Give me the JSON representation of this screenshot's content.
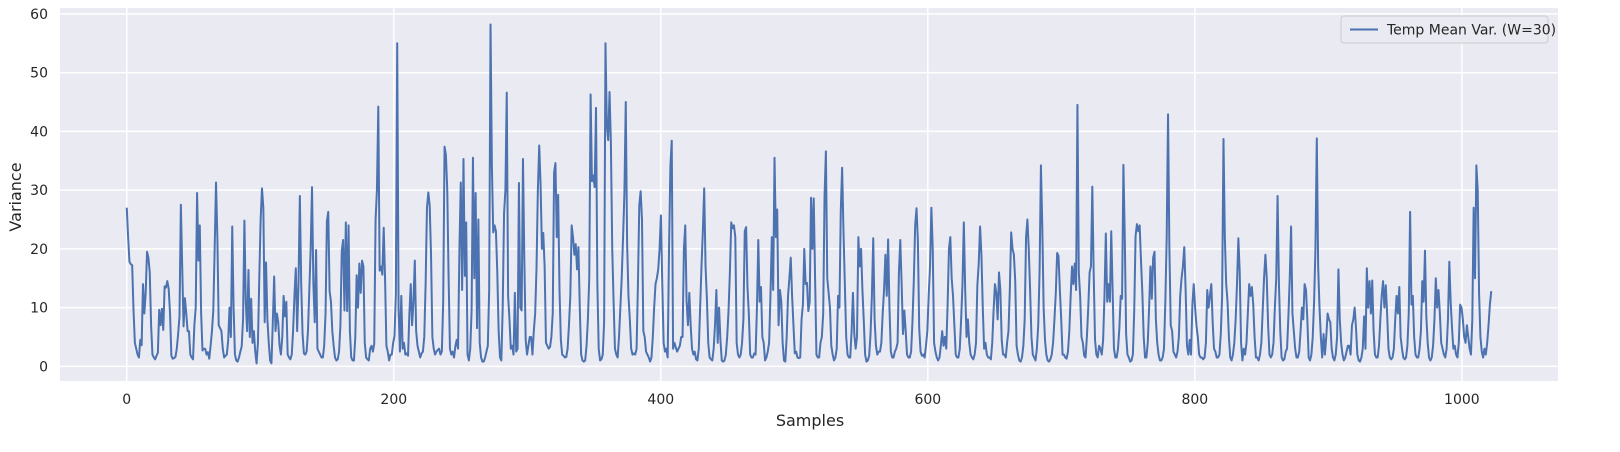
{
  "chart_data": {
    "type": "line",
    "xlabel": "Samples",
    "ylabel": "Variance",
    "xlim": [
      -50,
      1072
    ],
    "ylim": [
      -2.5,
      61
    ],
    "x_ticks": [
      0,
      200,
      400,
      600,
      800,
      1000
    ],
    "y_ticks": [
      0,
      10,
      20,
      30,
      40,
      50,
      60
    ],
    "grid": true,
    "legend_position": "top-right",
    "background": "#eaeaf2",
    "series": [
      {
        "name": "Temp Mean Var. (W=30)",
        "color": "#4c72b0",
        "x_start": 0,
        "x_step": 1,
        "values": [
          27.0,
          22.0,
          17.8,
          17.4,
          17.2,
          9.5,
          4.0,
          3.0,
          2.0,
          1.5,
          4.5,
          3.6,
          14.0,
          9.0,
          12.5,
          19.5,
          18.5,
          16.0,
          7.0,
          2.0,
          1.5,
          1.2,
          1.8,
          2.3,
          9.6,
          7.0,
          9.8,
          6.2,
          13.6,
          13.4,
          14.5,
          13.2,
          9.0,
          1.8,
          1.3,
          1.4,
          1.6,
          3.0,
          5.5,
          8.5,
          27.5,
          17.0,
          6.8,
          11.6,
          9.0,
          6.0,
          6.0,
          2.0,
          1.5,
          1.2,
          7.0,
          10.0,
          29.5,
          18.0,
          24.0,
          9.0,
          2.7,
          3.0,
          3.0,
          2.0,
          2.4,
          1.3,
          3.5,
          6.0,
          9.5,
          20.0,
          31.3,
          22.0,
          7.0,
          6.5,
          6.0,
          3.0,
          1.5,
          1.8,
          2.0,
          4.4,
          10.0,
          5.0,
          23.8,
          10.0,
          2.0,
          1.0,
          0.8,
          1.5,
          2.5,
          3.4,
          8.0,
          24.8,
          11.0,
          6.0,
          16.4,
          5.0,
          11.5,
          4.0,
          6.0,
          2.5,
          0.5,
          4.0,
          15.0,
          25.0,
          30.3,
          27.0,
          7.5,
          17.7,
          8.0,
          4.0,
          1.0,
          0.5,
          7.5,
          15.3,
          6.0,
          9.0,
          7.5,
          3.5,
          2.0,
          5.0,
          12.0,
          8.5,
          11.0,
          2.0,
          1.5,
          1.2,
          2.0,
          6.0,
          12.0,
          16.7,
          6.0,
          14.0,
          29.0,
          14.0,
          5.5,
          2.2,
          2.0,
          2.5,
          6.0,
          13.0,
          20.0,
          30.5,
          14.0,
          7.5,
          19.8,
          3.0,
          2.5,
          2.0,
          1.5,
          1.5,
          3.5,
          9.0,
          24.7,
          26.3,
          12.8,
          11.0,
          6.0,
          3.5,
          1.5,
          1.0,
          1.2,
          2.5,
          7.0,
          19.7,
          21.5,
          9.5,
          24.5,
          9.4,
          24.0,
          6.0,
          1.5,
          1.0,
          1.0,
          5.0,
          15.5,
          10.0,
          17.5,
          12.5,
          18.0,
          17.0,
          4.0,
          1.5,
          1.2,
          1.0,
          3.0,
          3.5,
          2.5,
          3.8,
          25.0,
          30.0,
          44.2,
          16.3,
          17.0,
          15.6,
          23.6,
          15.0,
          3.5,
          2.5,
          1.0,
          2.0,
          2.0,
          4.0,
          5.2,
          12.5,
          55.0,
          10.0,
          2.5,
          12.0,
          3.0,
          4.0,
          2.0,
          2.2,
          1.8,
          9.0,
          14.0,
          7.0,
          11.0,
          18.0,
          6.0,
          3.5,
          2.5,
          1.5,
          2.2,
          2.5,
          5.0,
          14.0,
          27.0,
          29.6,
          27.4,
          19.0,
          5.0,
          3.0,
          2.0,
          2.5,
          2.8,
          3.0,
          2.0,
          2.5,
          11.0,
          37.4,
          36.0,
          30.0,
          15.0,
          3.0,
          2.0,
          2.5,
          1.5,
          3.4,
          4.5,
          3.0,
          20.0,
          31.3,
          13.0,
          35.3,
          15.4,
          24.5,
          2.0,
          1.0,
          3.0,
          9.5,
          35.5,
          15.0,
          29.5,
          6.5,
          25.0,
          4.0,
          1.5,
          0.8,
          0.8,
          1.5,
          2.5,
          3.5,
          13.0,
          58.2,
          34.0,
          22.8,
          24.0,
          23.0,
          16.0,
          6.0,
          1.5,
          1.0,
          10.0,
          26.0,
          30.0,
          46.6,
          12.0,
          8.0,
          3.0,
          3.5,
          2.0,
          12.5,
          2.5,
          3.0,
          31.2,
          10.0,
          9.5,
          35.3,
          18.0,
          4.5,
          2.0,
          3.5,
          5.0,
          5.0,
          2.0,
          6.0,
          9.0,
          16.7,
          30.0,
          37.6,
          31.0,
          20.0,
          22.7,
          17.0,
          4.0,
          3.5,
          3.0,
          3.3,
          5.0,
          9.0,
          33.0,
          34.6,
          22.0,
          29.2,
          13.0,
          4.5,
          2.0,
          1.8,
          1.5,
          1.6,
          3.0,
          7.0,
          12.0,
          24.0,
          22.0,
          19.0,
          20.8,
          16.5,
          20.3,
          10.0,
          2.0,
          1.0,
          0.8,
          1.0,
          3.5,
          8.0,
          15.0,
          46.3,
          31.5,
          32.5,
          30.5,
          44.0,
          14.0,
          3.0,
          1.0,
          1.2,
          2.0,
          7.5,
          55.0,
          41.0,
          38.5,
          46.7,
          38.0,
          20.0,
          11.0,
          3.0,
          2.0,
          1.5,
          5.0,
          10.0,
          15.0,
          22.0,
          29.5,
          45.0,
          21.0,
          12.0,
          8.0,
          3.0,
          2.0,
          2.2,
          2.0,
          3.0,
          14.0,
          27.4,
          29.8,
          25.0,
          6.0,
          5.0,
          2.5,
          2.0,
          1.5,
          0.8,
          1.5,
          5.0,
          10.0,
          14.0,
          15.0,
          16.5,
          20.0,
          25.7,
          14.0,
          4.0,
          2.5,
          3.0,
          1.5,
          20.0,
          34.0,
          38.4,
          3.0,
          4.0,
          3.2,
          2.5,
          3.0,
          3.5,
          5.0,
          5.0,
          20.0,
          24.0,
          11.0,
          7.0,
          12.5,
          7.0,
          3.0,
          2.0,
          2.5,
          1.2,
          1.0,
          3.0,
          10.0,
          17.0,
          23.0,
          30.3,
          17.0,
          11.5,
          4.0,
          1.5,
          1.2,
          1.0,
          3.0,
          7.0,
          13.0,
          4.0,
          10.0,
          4.5,
          1.0,
          0.8,
          1.0,
          2.0,
          5.0,
          9.5,
          16.0,
          24.5,
          23.5,
          24.0,
          22.0,
          4.0,
          2.0,
          1.5,
          2.0,
          4.0,
          8.0,
          23.0,
          23.7,
          13.5,
          9.0,
          2.0,
          1.5,
          1.5,
          2.2,
          2.0,
          10.0,
          21.5,
          11.0,
          13.5,
          5.0,
          4.0,
          1.0,
          1.5,
          2.5,
          4.0,
          12.0,
          22.0,
          13.0,
          35.5,
          22.0,
          26.7,
          7.0,
          13.0,
          11.0,
          4.0,
          1.0,
          0.8,
          5.0,
          12.0,
          15.0,
          18.5,
          12.0,
          7.0,
          2.2,
          2.5,
          1.5,
          1.4,
          1.5,
          8.0,
          10.5,
          20.0,
          14.0,
          14.2,
          9.4,
          11.0,
          28.7,
          20.0,
          28.6,
          15.0,
          2.0,
          1.5,
          1.5,
          4.0,
          5.0,
          9.0,
          29.0,
          36.6,
          15.0,
          12.5,
          10.0,
          3.5,
          2.0,
          1.0,
          1.5,
          3.0,
          12.0,
          10.0,
          26.5,
          33.8,
          23.0,
          14.0,
          5.0,
          2.0,
          1.5,
          1.5,
          6.0,
          12.5,
          5.5,
          3.0,
          5.0,
          22.0,
          17.0,
          20.0,
          13.0,
          7.8,
          2.0,
          0.8,
          1.0,
          1.8,
          5.5,
          12.0,
          21.8,
          8.0,
          3.5,
          2.0,
          2.5,
          2.5,
          4.0,
          9.0,
          13.0,
          19.0,
          12.0,
          21.6,
          10.0,
          2.5,
          1.5,
          1.5,
          2.5,
          3.0,
          4.0,
          16.0,
          21.5,
          14.0,
          5.5,
          9.5,
          6.0,
          2.0,
          1.5,
          1.5,
          2.5,
          7.5,
          14.5,
          24.0,
          26.9,
          21.5,
          6.5,
          2.5,
          1.8,
          2.0,
          1.5,
          3.5,
          6.0,
          12.0,
          17.0,
          27.0,
          20.0,
          4.0,
          2.5,
          1.5,
          1.0,
          1.5,
          3.5,
          6.0,
          3.5,
          5.0,
          3.0,
          10.5,
          20.0,
          22.0,
          15.0,
          12.0,
          7.0,
          2.0,
          1.5,
          1.5,
          3.0,
          8.0,
          14.0,
          24.5,
          13.0,
          5.0,
          8.0,
          4.0,
          2.0,
          1.5,
          1.2,
          2.0,
          4.0,
          13.8,
          17.5,
          23.8,
          19.0,
          10.0,
          3.0,
          4.0,
          2.0,
          1.5,
          1.5,
          1.2,
          4.0,
          9.5,
          14.0,
          12.5,
          8.0,
          16.0,
          13.0,
          4.5,
          2.0,
          2.0,
          1.5,
          4.0,
          6.0,
          13.0,
          22.8,
          20.0,
          19.0,
          14.5,
          3.5,
          2.0,
          1.0,
          0.8,
          1.5,
          3.5,
          8.0,
          22.0,
          25.0,
          20.0,
          13.0,
          5.0,
          2.0,
          1.5,
          1.0,
          3.0,
          7.0,
          16.0,
          34.2,
          24.0,
          10.0,
          4.5,
          2.0,
          1.0,
          0.8,
          1.2,
          2.0,
          4.0,
          8.0,
          12.5,
          19.3,
          18.8,
          13.0,
          8.0,
          2.0,
          2.0,
          1.5,
          1.3,
          2.5,
          6.0,
          12.0,
          17.0,
          14.0,
          17.5,
          13.0,
          44.5,
          16.0,
          12.0,
          5.0,
          4.0,
          1.8,
          1.5,
          5.0,
          10.0,
          16.0,
          17.0,
          30.6,
          16.0,
          4.5,
          2.0,
          1.5,
          3.5,
          3.0,
          2.0,
          4.5,
          12.0,
          22.6,
          11.0,
          14.0,
          11.0,
          23.0,
          13.0,
          3.0,
          1.5,
          1.5,
          3.0,
          6.5,
          12.0,
          11.5,
          34.3,
          22.0,
          5.5,
          2.0,
          1.5,
          0.8,
          1.0,
          2.0,
          9.5,
          22.2,
          24.2,
          23.0,
          24.0,
          18.0,
          12.5,
          5.0,
          1.5,
          1.5,
          4.0,
          10.0,
          17.0,
          11.5,
          18.5,
          19.5,
          8.0,
          4.0,
          2.0,
          1.0,
          1.0,
          1.5,
          3.0,
          11.0,
          22.0,
          42.9,
          20.0,
          7.0,
          6.0,
          2.5,
          2.0,
          1.5,
          2.5,
          5.0,
          12.0,
          15.0,
          17.0,
          20.3,
          13.0,
          3.5,
          2.0,
          4.5,
          2.0,
          10.5,
          14.0,
          10.0,
          7.0,
          5.0,
          2.0,
          1.5,
          1.5,
          1.2,
          1.5,
          4.0,
          13.0,
          10.0,
          12.0,
          14.0,
          7.5,
          3.0,
          2.5,
          1.5,
          1.5,
          2.0,
          5.5,
          12.0,
          38.7,
          22.0,
          14.0,
          11.0,
          5.0,
          1.5,
          1.0,
          2.0,
          4.0,
          8.0,
          14.0,
          21.8,
          16.0,
          4.0,
          1.0,
          3.0,
          2.0,
          4.0,
          9.0,
          14.0,
          12.0,
          13.5,
          10.5,
          5.0,
          1.5,
          1.5,
          1.0,
          2.0,
          4.0,
          9.5,
          15.0,
          19.0,
          15.0,
          7.0,
          2.0,
          1.5,
          2.0,
          4.0,
          10.0,
          15.0,
          29.0,
          14.0,
          6.0,
          1.5,
          1.0,
          1.2,
          2.5,
          3.0,
          8.5,
          15.0,
          23.8,
          9.0,
          6.0,
          3.0,
          1.5,
          1.5,
          2.5,
          6.0,
          10.0,
          8.0,
          14.0,
          13.0,
          8.0,
          1.5,
          1.0,
          2.0,
          5.0,
          11.0,
          20.0,
          38.8,
          17.0,
          10.0,
          5.0,
          1.5,
          5.5,
          2.0,
          5.0,
          9.0,
          8.0,
          7.5,
          3.0,
          1.5,
          1.0,
          2.0,
          5.0,
          16.5,
          8.0,
          4.0,
          2.0,
          1.0,
          1.5,
          2.5,
          3.5,
          3.5,
          2.0,
          7.0,
          8.0,
          10.0,
          6.5,
          2.0,
          1.0,
          0.8,
          1.5,
          3.0,
          8.5,
          3.0,
          16.7,
          10.0,
          14.5,
          9.0,
          14.6,
          6.0,
          2.0,
          1.5,
          1.5,
          3.5,
          8.0,
          12.0,
          14.5,
          10.0,
          13.8,
          9.0,
          3.0,
          1.5,
          1.2,
          1.5,
          3.0,
          8.0,
          12.0,
          9.0,
          13.5,
          5.0,
          3.0,
          1.5,
          1.2,
          1.5,
          3.5,
          9.0,
          26.3,
          10.5,
          12.0,
          5.0,
          2.0,
          1.5,
          1.5,
          3.0,
          6.0,
          14.5,
          11.0,
          19.7,
          8.5,
          4.0,
          1.5,
          1.0,
          1.5,
          3.5,
          8.0,
          15.0,
          10.0,
          13.0,
          9.0,
          4.0,
          3.0,
          2.0,
          1.5,
          3.0,
          8.0,
          17.8,
          11.0,
          6.5,
          3.0,
          3.5,
          2.0,
          1.5,
          4.0,
          10.5,
          10.0,
          8.0,
          5.0,
          4.0,
          7.0,
          5.0,
          3.0,
          2.0,
          8.0,
          27.0,
          15.0,
          34.2,
          30.0,
          12.5,
          5.0,
          2.5,
          1.5,
          3.0,
          2.0,
          4.0,
          7.0,
          10.5,
          12.8
        ]
      }
    ]
  }
}
